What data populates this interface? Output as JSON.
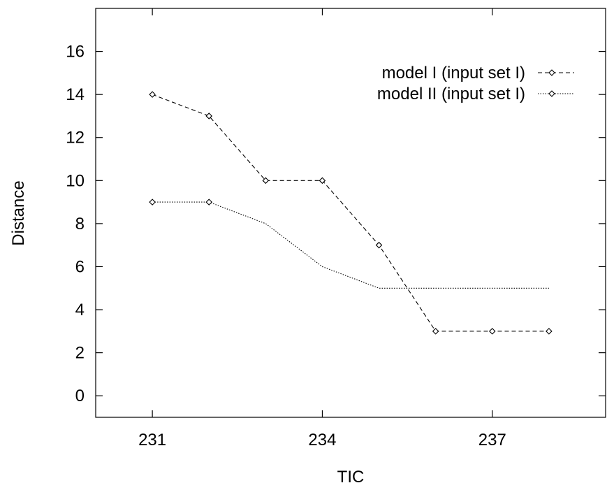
{
  "chart_data": {
    "type": "line",
    "title": "",
    "xlabel": "TIC",
    "ylabel": "Distance",
    "xlim": [
      230,
      239
    ],
    "ylim": [
      -1,
      18
    ],
    "xticks": [
      231,
      234,
      237
    ],
    "yticks": [
      0,
      2,
      4,
      6,
      8,
      10,
      12,
      14,
      16
    ],
    "grid": false,
    "legend_position": "top-right",
    "series": [
      {
        "name": "model  I (input set  I)",
        "line_style": "dashed",
        "marker": "diamond",
        "color": "#000000",
        "points": [
          [
            231,
            14
          ],
          [
            232,
            13
          ],
          [
            233,
            10
          ],
          [
            234,
            10
          ],
          [
            235,
            7
          ],
          [
            236,
            3
          ],
          [
            237,
            3
          ],
          [
            238,
            3
          ]
        ],
        "marker_x": [
          231,
          232,
          233,
          234,
          235,
          236,
          237,
          238
        ]
      },
      {
        "name": "model II (input set  I)",
        "line_style": "dotted",
        "marker": "diamond",
        "color": "#000000",
        "points": [
          [
            231,
            9
          ],
          [
            232,
            9
          ],
          [
            233,
            8
          ],
          [
            234,
            6
          ],
          [
            235,
            5
          ],
          [
            236,
            5
          ],
          [
            237,
            5
          ],
          [
            238,
            5
          ]
        ],
        "marker_x": [
          231,
          232
        ]
      }
    ]
  }
}
